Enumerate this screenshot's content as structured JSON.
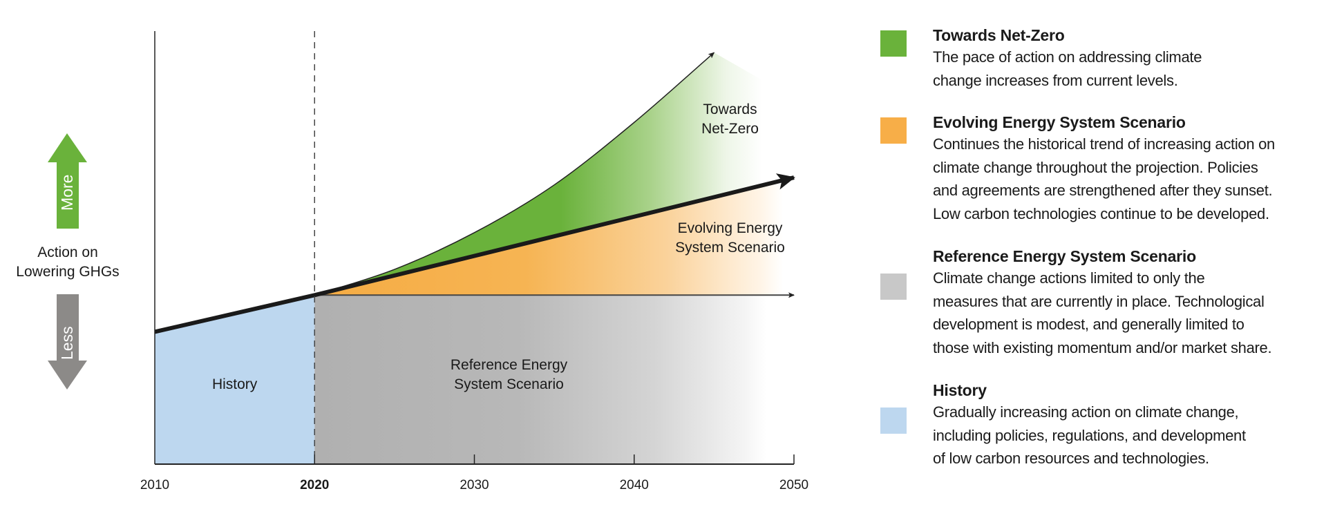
{
  "chart_data": {
    "type": "area",
    "title": "",
    "xlabel": "",
    "ylabel": "Action on Lowering GHGs",
    "y_axis_annotations": {
      "up_label": "More",
      "down_label": "Less",
      "center_label_lines": [
        "Action on",
        "Lowering GHGs"
      ]
    },
    "x_ticks": [
      {
        "label": "2010",
        "bold": false
      },
      {
        "label": "2020",
        "bold": true
      },
      {
        "label": "2030",
        "bold": false
      },
      {
        "label": "2040",
        "bold": false
      },
      {
        "label": "2050",
        "bold": false
      }
    ],
    "xlim": [
      2010,
      2050
    ],
    "ylim": [
      0,
      10
    ],
    "divider_year": 2020,
    "series": [
      {
        "name": "History",
        "x": [
          2010,
          2020
        ],
        "values": [
          3.6,
          4.6
        ],
        "color": "#bdd7ef",
        "label_lines": [
          "History"
        ]
      },
      {
        "name": "Reference Energy System Scenario",
        "x": [
          2020,
          2050
        ],
        "values": [
          4.6,
          4.6
        ],
        "color": "#b3b3b3",
        "label_lines": [
          "Reference Energy",
          "System Scenario"
        ]
      },
      {
        "name": "Evolving Energy System Scenario",
        "x": [
          2020,
          2050
        ],
        "values": [
          4.6,
          7.8
        ],
        "color": "#f5ac44",
        "label_lines": [
          "Evolving Energy",
          "System Scenario"
        ]
      },
      {
        "name": "Towards Net-Zero",
        "x": [
          2020,
          2025,
          2030,
          2035,
          2040,
          2045
        ],
        "values": [
          4.6,
          5.3,
          6.3,
          7.6,
          9.3,
          11.2
        ],
        "color": "#6ab23b",
        "label_lines": [
          "Towards",
          "Net-Zero"
        ]
      }
    ],
    "grid": false,
    "legend": "right"
  },
  "legend": {
    "items": [
      {
        "title": "Towards Net-Zero",
        "color": "#6ab23b",
        "lines": [
          "The pace of action on addressing climate",
          "change increases from current levels."
        ]
      },
      {
        "title": "Evolving Energy System Scenario",
        "color": "#f7ae48",
        "lines": [
          "Continues the historical trend of increasing action on",
          "climate change throughout the projection. Policies",
          "and agreements are strengthened after they sunset.",
          "Low carbon technologies continue to be developed."
        ]
      },
      {
        "title": "Reference Energy System Scenario",
        "color": "#c8c8c8",
        "lines": [
          "Climate change actions limited to only the",
          "measures that are currently in place. Technological",
          "development is modest, and generally limited to",
          "those with existing momentum and/or market share."
        ]
      },
      {
        "title": "History",
        "color": "#bdd7ef",
        "lines": [
          "Gradually increasing action on climate change,",
          "including policies, regulations, and development",
          "of low carbon resources and technologies."
        ]
      }
    ]
  }
}
